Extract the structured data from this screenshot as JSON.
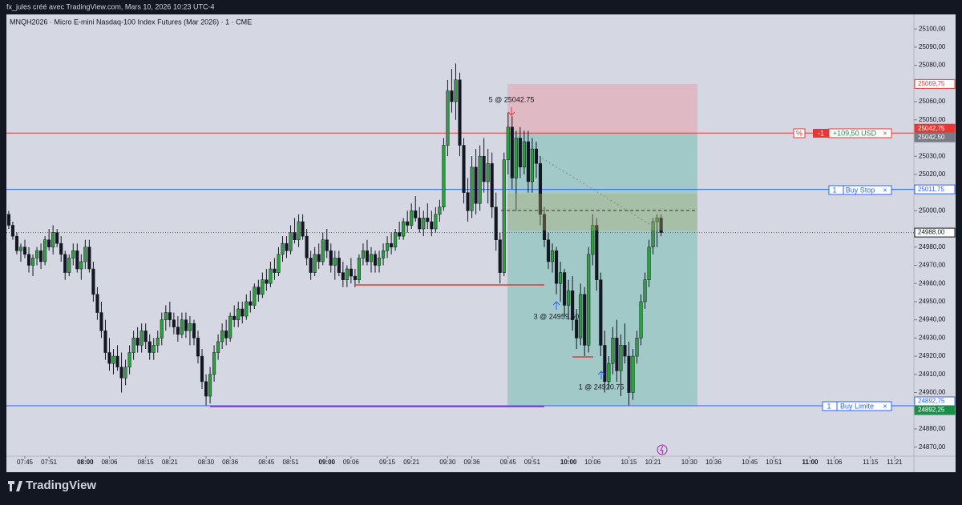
{
  "header": {
    "text": "fx_jules créé avec TradingView.com, Mars 10, 2026 10:23 UTC-4"
  },
  "chart_data": {
    "type": "candlestick",
    "title": "MNQH2026 · Micro E-mini Nasdaq-100 Index Futures (Mar 2026) · 1 · CME",
    "up_color": "#2e9e3e",
    "down_color": "#131722",
    "ylim": [
      24865,
      25108
    ],
    "yticks": [
      {
        "value": 25100,
        "label": "25100,00"
      },
      {
        "value": 25090,
        "label": "25090,00"
      },
      {
        "value": 25080,
        "label": "25080,00"
      },
      {
        "value": 25060,
        "label": "25060,00"
      },
      {
        "value": 25050,
        "label": "25050,00"
      },
      {
        "value": 25030,
        "label": "25030,00"
      },
      {
        "value": 25020,
        "label": "25020,00"
      },
      {
        "value": 25000,
        "label": "25000,00"
      },
      {
        "value": 24980,
        "label": "24980,00"
      },
      {
        "value": 24970,
        "label": "24970,00"
      },
      {
        "value": 24960,
        "label": "24960,00"
      },
      {
        "value": 24950,
        "label": "24950,00"
      },
      {
        "value": 24940,
        "label": "24940,00"
      },
      {
        "value": 24930,
        "label": "24930,00"
      },
      {
        "value": 24920,
        "label": "24920,00"
      },
      {
        "value": 24910,
        "label": "24910,00"
      },
      {
        "value": 24900,
        "label": "24900,00"
      },
      {
        "value": 24880,
        "label": "24880,00"
      },
      {
        "value": 24870,
        "label": "24870,00"
      }
    ],
    "xticks": [
      "07:45",
      "07:51",
      "08:00",
      "08:06",
      "08:15",
      "08:21",
      "08:30",
      "08:36",
      "08:45",
      "08:51",
      "09:00",
      "09:06",
      "09:15",
      "09:21",
      "09:30",
      "09:36",
      "09:45",
      "09:51",
      "10:00",
      "10:06",
      "10:15",
      "10:21",
      "10:30",
      "10:36",
      "10:45",
      "10:51",
      "11:00",
      "11:06",
      "11:15",
      "11:21"
    ],
    "x": [
      "07:41",
      "07:42",
      "07:43",
      "07:44",
      "07:45",
      "07:46",
      "07:47",
      "07:48",
      "07:49",
      "07:50",
      "07:51",
      "07:52",
      "07:53",
      "07:54",
      "07:55",
      "07:56",
      "07:57",
      "07:58",
      "07:59",
      "08:00",
      "08:01",
      "08:02",
      "08:03",
      "08:04",
      "08:05",
      "08:06",
      "08:07",
      "08:08",
      "08:09",
      "08:10",
      "08:11",
      "08:12",
      "08:13",
      "08:14",
      "08:15",
      "08:16",
      "08:17",
      "08:18",
      "08:19",
      "08:20",
      "08:21",
      "08:22",
      "08:23",
      "08:24",
      "08:25",
      "08:26",
      "08:27",
      "08:28",
      "08:29",
      "08:30",
      "08:31",
      "08:32",
      "08:33",
      "08:34",
      "08:35",
      "08:36",
      "08:37",
      "08:38",
      "08:39",
      "08:40",
      "08:41",
      "08:42",
      "08:43",
      "08:44",
      "08:45",
      "08:46",
      "08:47",
      "08:48",
      "08:49",
      "08:50",
      "08:51",
      "08:52",
      "08:53",
      "08:54",
      "08:55",
      "08:56",
      "08:57",
      "08:58",
      "08:59",
      "09:00",
      "09:01",
      "09:02",
      "09:03",
      "09:04",
      "09:05",
      "09:06",
      "09:07",
      "09:08",
      "09:09",
      "09:10",
      "09:11",
      "09:12",
      "09:13",
      "09:14",
      "09:15",
      "09:16",
      "09:17",
      "09:18",
      "09:19",
      "09:20",
      "09:21",
      "09:22",
      "09:23",
      "09:24",
      "09:25",
      "09:26",
      "09:27",
      "09:28",
      "09:29",
      "09:30",
      "09:31",
      "09:32",
      "09:33",
      "09:34",
      "09:35",
      "09:36",
      "09:37",
      "09:38",
      "09:39",
      "09:40",
      "09:41",
      "09:42",
      "09:43",
      "09:44",
      "09:45",
      "09:46",
      "09:47",
      "09:48",
      "09:49",
      "09:50",
      "09:51",
      "09:52",
      "09:53",
      "09:54",
      "09:55",
      "09:56",
      "09:57",
      "09:58",
      "09:59",
      "10:00",
      "10:01",
      "10:02",
      "10:03",
      "10:04",
      "10:05",
      "10:06",
      "10:07",
      "10:08",
      "10:09",
      "10:10",
      "10:11",
      "10:12",
      "10:13",
      "10:14",
      "10:15",
      "10:16",
      "10:17",
      "10:18",
      "10:19",
      "10:20",
      "10:21",
      "10:22",
      "10:23"
    ],
    "candles": [
      [
        24998,
        25000,
        24990,
        24992
      ],
      [
        24992,
        24994,
        24984,
        24986
      ],
      [
        24986,
        24988,
        24976,
        24978
      ],
      [
        24978,
        24982,
        24972,
        24980
      ],
      [
        24980,
        24984,
        24974,
        24976
      ],
      [
        24976,
        24980,
        24966,
        24970
      ],
      [
        24970,
        24976,
        24964,
        24974
      ],
      [
        24974,
        24980,
        24970,
        24978
      ],
      [
        24978,
        24982,
        24968,
        24972
      ],
      [
        24972,
        24986,
        24970,
        24984
      ],
      [
        24984,
        24990,
        24978,
        24980
      ],
      [
        24980,
        24992,
        24976,
        24988
      ],
      [
        24988,
        24990,
        24980,
        24982
      ],
      [
        24982,
        24986,
        24972,
        24976
      ],
      [
        24976,
        24978,
        24962,
        24966
      ],
      [
        24966,
        24976,
        24964,
        24974
      ],
      [
        24974,
        24982,
        24970,
        24978
      ],
      [
        24978,
        24982,
        24966,
        24968
      ],
      [
        24968,
        24976,
        24962,
        24972
      ],
      [
        24972,
        24984,
        24968,
        24980
      ],
      [
        24980,
        24984,
        24966,
        24968
      ],
      [
        24968,
        24972,
        24950,
        24954
      ],
      [
        24954,
        24958,
        24940,
        24944
      ],
      [
        24944,
        24950,
        24930,
        24934
      ],
      [
        24934,
        24940,
        24918,
        24922
      ],
      [
        24922,
        24930,
        24912,
        24916
      ],
      [
        24916,
        24924,
        24910,
        24920
      ],
      [
        24920,
        24926,
        24912,
        24914
      ],
      [
        24914,
        24922,
        24900,
        24908
      ],
      [
        24908,
        24918,
        24904,
        24914
      ],
      [
        24914,
        24926,
        24910,
        24922
      ],
      [
        24922,
        24934,
        24918,
        24930
      ],
      [
        24930,
        24936,
        24922,
        24926
      ],
      [
        24926,
        24938,
        24922,
        24934
      ],
      [
        24934,
        24938,
        24924,
        24928
      ],
      [
        24928,
        24932,
        24918,
        24922
      ],
      [
        24922,
        24930,
        24918,
        24926
      ],
      [
        24926,
        24934,
        24922,
        24930
      ],
      [
        24930,
        24944,
        24926,
        24940
      ],
      [
        24940,
        24948,
        24934,
        24944
      ],
      [
        24944,
        24950,
        24936,
        24940
      ],
      [
        24940,
        24944,
        24932,
        24936
      ],
      [
        24936,
        24942,
        24928,
        24932
      ],
      [
        24932,
        24944,
        24930,
        24940
      ],
      [
        24940,
        24944,
        24930,
        24934
      ],
      [
        24934,
        24942,
        24926,
        24938
      ],
      [
        24938,
        24940,
        24926,
        24930
      ],
      [
        24930,
        24934,
        24916,
        24920
      ],
      [
        24920,
        24924,
        24902,
        24906
      ],
      [
        24906,
        24910,
        24893,
        24898
      ],
      [
        24898,
        24914,
        24894,
        24910
      ],
      [
        24910,
        24926,
        24906,
        24922
      ],
      [
        24922,
        24932,
        24918,
        24928
      ],
      [
        24928,
        24938,
        24924,
        24934
      ],
      [
        24934,
        24940,
        24926,
        24930
      ],
      [
        24930,
        24944,
        24928,
        24942
      ],
      [
        24942,
        24948,
        24936,
        24940
      ],
      [
        24940,
        24950,
        24936,
        24946
      ],
      [
        24946,
        24950,
        24938,
        24942
      ],
      [
        24942,
        24954,
        24940,
        24950
      ],
      [
        24950,
        24956,
        24944,
        24948
      ],
      [
        24948,
        24960,
        24946,
        24958
      ],
      [
        24958,
        24962,
        24950,
        24954
      ],
      [
        24954,
        24966,
        24952,
        24962
      ],
      [
        24962,
        24968,
        24956,
        24960
      ],
      [
        24960,
        24972,
        24958,
        24968
      ],
      [
        24968,
        24974,
        24962,
        24966
      ],
      [
        24966,
        24980,
        24964,
        24976
      ],
      [
        24976,
        24986,
        24972,
        24982
      ],
      [
        24982,
        24986,
        24974,
        24978
      ],
      [
        24978,
        24992,
        24976,
        24988
      ],
      [
        24988,
        24996,
        24982,
        24984
      ],
      [
        24984,
        24998,
        24980,
        24994
      ],
      [
        24994,
        24998,
        24984,
        24986
      ],
      [
        24986,
        24990,
        24970,
        24974
      ],
      [
        24974,
        24978,
        24962,
        24966
      ],
      [
        24966,
        24980,
        24964,
        24976
      ],
      [
        24976,
        24982,
        24968,
        24972
      ],
      [
        24972,
        24988,
        24970,
        24984
      ],
      [
        24984,
        24990,
        24974,
        24978
      ],
      [
        24978,
        24982,
        24966,
        24970
      ],
      [
        24970,
        24978,
        24962,
        24974
      ],
      [
        24974,
        24978,
        24964,
        24966
      ],
      [
        24966,
        24972,
        24958,
        24962
      ],
      [
        24962,
        24970,
        24958,
        24968
      ],
      [
        24968,
        24974,
        24960,
        24964
      ],
      [
        24964,
        24968,
        24958,
        24962
      ],
      [
        24962,
        24976,
        24960,
        24974
      ],
      [
        24974,
        24982,
        24970,
        24978
      ],
      [
        24978,
        24984,
        24970,
        24972
      ],
      [
        24972,
        24980,
        24966,
        24976
      ],
      [
        24976,
        24978,
        24966,
        24970
      ],
      [
        24970,
        24978,
        24966,
        24974
      ],
      [
        24974,
        24982,
        24970,
        24978
      ],
      [
        24978,
        24986,
        24974,
        24982
      ],
      [
        24982,
        24988,
        24976,
        24980
      ],
      [
        24980,
        24990,
        24978,
        24988
      ],
      [
        24988,
        24994,
        24984,
        24986
      ],
      [
        24986,
        24996,
        24984,
        24994
      ],
      [
        24994,
        25000,
        24988,
        24992
      ],
      [
        24992,
        25004,
        24990,
        25000
      ],
      [
        25000,
        25008,
        24994,
        24996
      ],
      [
        24996,
        25002,
        24988,
        24990
      ],
      [
        24990,
        25000,
        24986,
        24996
      ],
      [
        24996,
        25004,
        24990,
        24994
      ],
      [
        24994,
        25000,
        24986,
        24990
      ],
      [
        24990,
        25002,
        24988,
        24998
      ],
      [
        24998,
        25006,
        24994,
        25002
      ],
      [
        25002,
        25040,
        25000,
        25036
      ],
      [
        25036,
        25072,
        25030,
        25066
      ],
      [
        25066,
        25078,
        25054,
        25060
      ],
      [
        25060,
        25081,
        25050,
        25072
      ],
      [
        25072,
        25076,
        25030,
        25036
      ],
      [
        25036,
        25040,
        25004,
        25010
      ],
      [
        25010,
        25018,
        24994,
        25000
      ],
      [
        25000,
        25030,
        24996,
        25024
      ],
      [
        25024,
        25034,
        24998,
        25004
      ],
      [
        25004,
        25036,
        25000,
        25030
      ],
      [
        25030,
        25040,
        25010,
        25016
      ],
      [
        25016,
        25034,
        25004,
        25026
      ],
      [
        25026,
        25032,
        24996,
        25002
      ],
      [
        25002,
        25010,
        24978,
        24984
      ],
      [
        24984,
        24988,
        24960,
        24966
      ],
      [
        24966,
        25032,
        24964,
        25028
      ],
      [
        25028,
        25054,
        25020,
        25046
      ],
      [
        25046,
        25052,
        25012,
        25018
      ],
      [
        25018,
        25044,
        25000,
        25040
      ],
      [
        25040,
        25046,
        25018,
        25024
      ],
      [
        25024,
        25044,
        25020,
        25038
      ],
      [
        25038,
        25044,
        25010,
        25016
      ],
      [
        25016,
        25040,
        25010,
        25034
      ],
      [
        25034,
        25038,
        25018,
        25026
      ],
      [
        25026,
        25030,
        24992,
        24998
      ],
      [
        24998,
        25002,
        24980,
        24984
      ],
      [
        24984,
        24988,
        24968,
        24972
      ],
      [
        24972,
        24982,
        24966,
        24978
      ],
      [
        24978,
        24980,
        24954,
        24960
      ],
      [
        24960,
        24972,
        24950,
        24966
      ],
      [
        24966,
        24968,
        24942,
        24948
      ],
      [
        24948,
        24962,
        24940,
        24956
      ],
      [
        24956,
        24964,
        24934,
        24940
      ],
      [
        24940,
        24946,
        24924,
        24930
      ],
      [
        24930,
        24960,
        24926,
        24954
      ],
      [
        24954,
        24958,
        24920,
        24926
      ],
      [
        24926,
        24980,
        24922,
        24976
      ],
      [
        24976,
        24998,
        24970,
        24992
      ],
      [
        24992,
        24996,
        24956,
        24962
      ],
      [
        24962,
        24966,
        24920,
        24926
      ],
      [
        24926,
        24934,
        24900,
        24906
      ],
      [
        24906,
        24920,
        24902,
        24916
      ],
      [
        24916,
        24936,
        24910,
        24930
      ],
      [
        24930,
        24940,
        24906,
        24912
      ],
      [
        24912,
        24932,
        24898,
        24926
      ],
      [
        24926,
        24938,
        24916,
        24920
      ],
      [
        24920,
        24928,
        24893,
        24900
      ],
      [
        24900,
        24924,
        24896,
        24920
      ],
      [
        24920,
        24934,
        24916,
        24930
      ],
      [
        24930,
        24954,
        24926,
        24950
      ],
      [
        24950,
        24966,
        24946,
        24962
      ],
      [
        24962,
        24984,
        24958,
        24980
      ],
      [
        24980,
        24996,
        24976,
        24994
      ],
      [
        24994,
        24998,
        24980,
        24996
      ],
      [
        24996,
        24998,
        24986,
        24988
      ]
    ],
    "price_tags": [
      {
        "value": 25069.75,
        "label": "25069,75",
        "bg": "#ffffff",
        "fg": "#e53935"
      },
      {
        "value": 25042.75,
        "label": "25042,75",
        "bg": "#e53935",
        "fg": "#ffffff",
        "line": "#e53935"
      },
      {
        "value": 25042.5,
        "label": "25042,50",
        "bg": "#787b86",
        "fg": "#ffffff"
      },
      {
        "value": 25011.75,
        "label": "25011,75",
        "bg": "#ffffff",
        "fg": "#2962ff",
        "line": "#2962ff"
      },
      {
        "value": 24988,
        "label": "24988,00",
        "bg": "#ffffff",
        "fg": "#131722",
        "line": "#666666",
        "line_style": "dotted"
      },
      {
        "value": 24892.75,
        "label": "24892,75",
        "bg": "#ffffff",
        "fg": "#2962ff",
        "line": "#2962ff"
      },
      {
        "value": 24892.25,
        "label": "24892,25",
        "bg": "#1b8f4a",
        "fg": "#ffffff"
      }
    ]
  },
  "orders": [
    {
      "pct": "%",
      "qty": "-1",
      "pnl": "+109,50 USD",
      "close": "×"
    },
    {
      "qty": "1",
      "label": "Buy Stop",
      "close": "×"
    },
    {
      "qty": "1",
      "label": "Buy Limite",
      "close": "×"
    }
  ],
  "annotations": [
    "5 @ 25042.75",
    "3 @ 24959.50",
    "1 @ 24920.75"
  ],
  "footer": {
    "logo": "TradingView"
  }
}
